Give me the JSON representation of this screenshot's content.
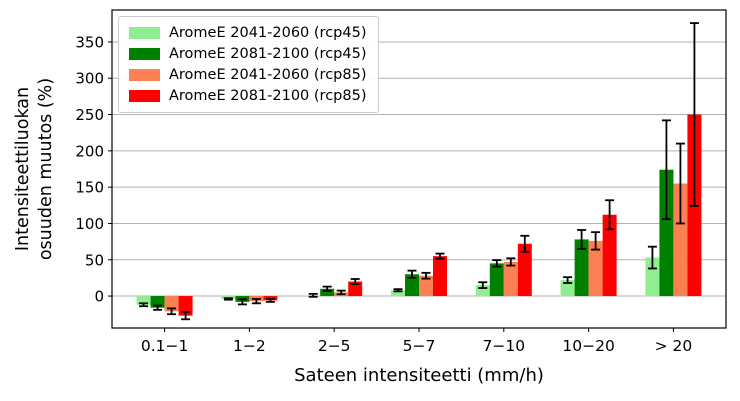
{
  "figure": {
    "xlabel": "Sateen intensiteetti (mm/h)",
    "ylabel_lines": [
      "Intensiteettiluokan",
      "osuuden muutos (%)"
    ]
  },
  "chart_data": {
    "type": "bar",
    "xlabel": "Sateen intensiteetti (mm/h)",
    "ylabel": "Intensiteettiluokan osuuden muutos (%)",
    "categories": [
      "0.1−1",
      "1−2",
      "2−5",
      "5−7",
      "7−10",
      "10−20",
      "> 20"
    ],
    "y_ticks": [
      0,
      50,
      100,
      150,
      200,
      250,
      300,
      350
    ],
    "ylim": [
      -44,
      394
    ],
    "grid": "horizontal",
    "legend_position": "upper left",
    "error_bars": true,
    "series": [
      {
        "name": "AromeE 2041-2060 (rcp45)",
        "color": "#90EE90",
        "values": [
          -12,
          -4,
          1,
          8,
          15,
          22,
          53
        ],
        "errors": [
          2,
          1,
          2,
          1.5,
          4,
          4,
          15
        ]
      },
      {
        "name": "AromeE 2081-2100 (rcp45)",
        "color": "#008000",
        "values": [
          -16,
          -8,
          10,
          30,
          45,
          78,
          174
        ],
        "errors": [
          3,
          3.5,
          3,
          5,
          4.5,
          13,
          68
        ]
      },
      {
        "name": "AromeE 2041-2060 (rcp85)",
        "color": "#FB8052",
        "values": [
          -21,
          -7,
          5,
          28,
          47,
          76,
          155
        ],
        "errors": [
          4,
          3,
          2.5,
          4,
          5,
          12,
          55
        ]
      },
      {
        "name": "AromeE 2081-2100 (rcp85)",
        "color": "#FF0000",
        "values": [
          -27,
          -6,
          20,
          55,
          72,
          112,
          250
        ],
        "errors": [
          5,
          2,
          3.5,
          3.5,
          11,
          20,
          126
        ]
      }
    ]
  }
}
